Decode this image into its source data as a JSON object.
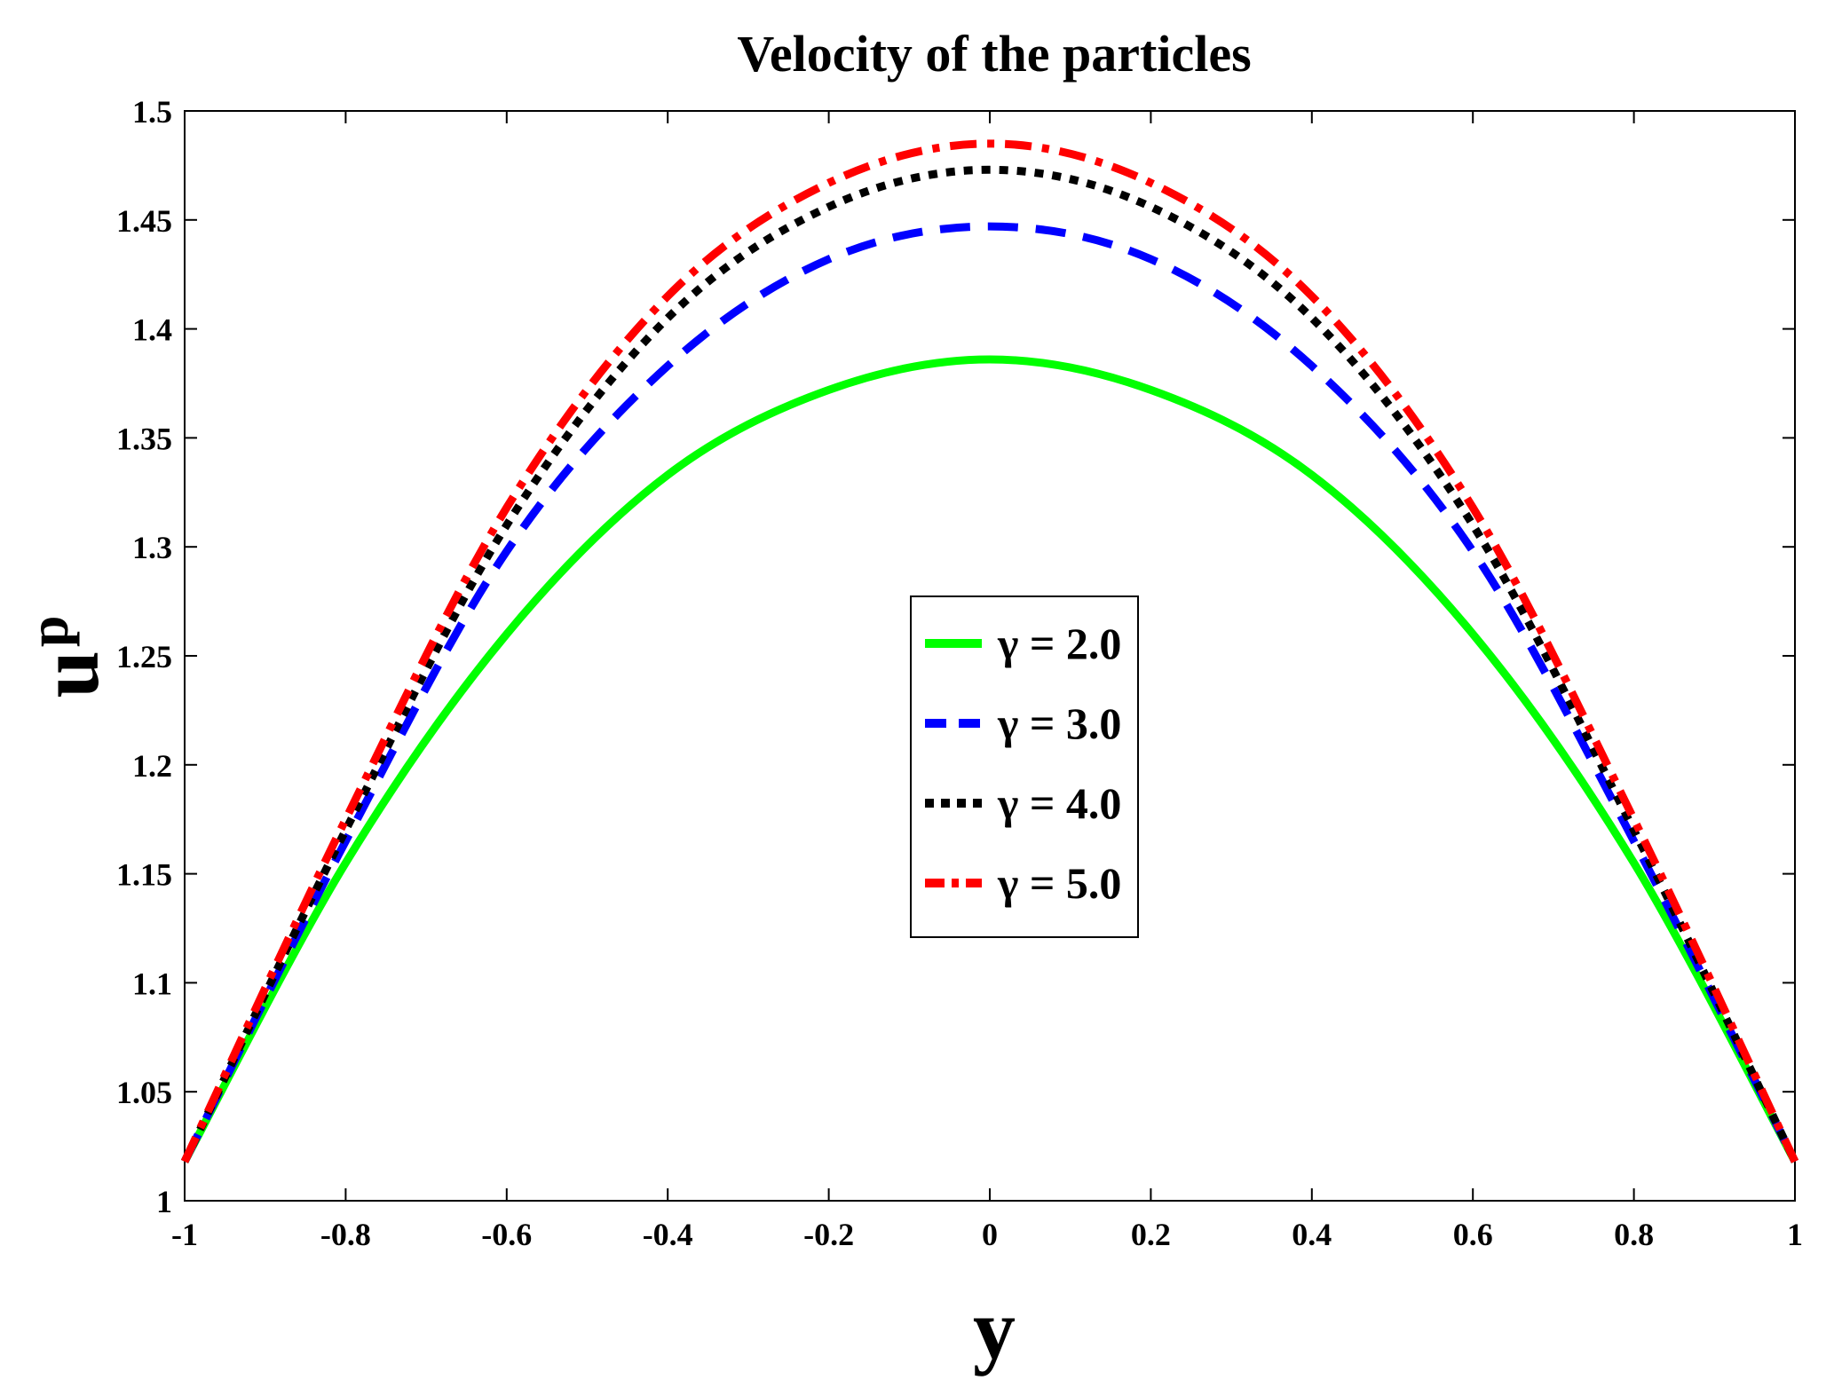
{
  "chart_data": {
    "type": "line",
    "title": "Velocity of the particles",
    "xlabel": "y",
    "ylabel": {
      "main": "u",
      "subscript": "p"
    },
    "xlim": [
      -1,
      1
    ],
    "ylim": [
      1,
      1.5
    ],
    "x_ticks": [
      -1,
      -0.8,
      -0.6,
      -0.4,
      -0.2,
      0,
      0.2,
      0.4,
      0.6,
      0.8,
      1
    ],
    "x_tick_labels": [
      "-1",
      "-0.8",
      "-0.6",
      "-0.4",
      "-0.2",
      "0",
      "0.2",
      "0.4",
      "0.6",
      "0.8",
      "1"
    ],
    "y_ticks": [
      1,
      1.05,
      1.1,
      1.15,
      1.2,
      1.25,
      1.3,
      1.35,
      1.4,
      1.45,
      1.5
    ],
    "y_tick_labels": [
      "1",
      "1.05",
      "1.1",
      "1.15",
      "1.2",
      "1.25",
      "1.3",
      "1.35",
      "1.4",
      "1.45",
      "1.5"
    ],
    "grid": false,
    "legend_position": "center",
    "x": [
      -1,
      -0.8,
      -0.6,
      -0.4,
      -0.2,
      0,
      0.2,
      0.4,
      0.6,
      0.8,
      1
    ],
    "series": [
      {
        "name": "γ = 2.0",
        "color": "#00ff00",
        "style": "solid",
        "values": [
          1.018,
          1.155,
          1.26,
          1.333,
          1.372,
          1.386,
          1.372,
          1.333,
          1.26,
          1.155,
          1.018
        ]
      },
      {
        "name": "γ = 3.0",
        "color": "#0000ff",
        "style": "dashed",
        "values": [
          1.018,
          1.165,
          1.298,
          1.383,
          1.432,
          1.447,
          1.432,
          1.383,
          1.298,
          1.165,
          1.018
        ]
      },
      {
        "name": "γ = 4.0",
        "color": "#000000",
        "style": "dotted",
        "values": [
          1.018,
          1.17,
          1.31,
          1.405,
          1.456,
          1.473,
          1.456,
          1.405,
          1.31,
          1.17,
          1.018
        ]
      },
      {
        "name": "γ = 5.0",
        "color": "#ff0000",
        "style": "dashdot",
        "values": [
          1.018,
          1.175,
          1.318,
          1.415,
          1.467,
          1.485,
          1.467,
          1.415,
          1.318,
          1.175,
          1.018
        ]
      }
    ]
  }
}
